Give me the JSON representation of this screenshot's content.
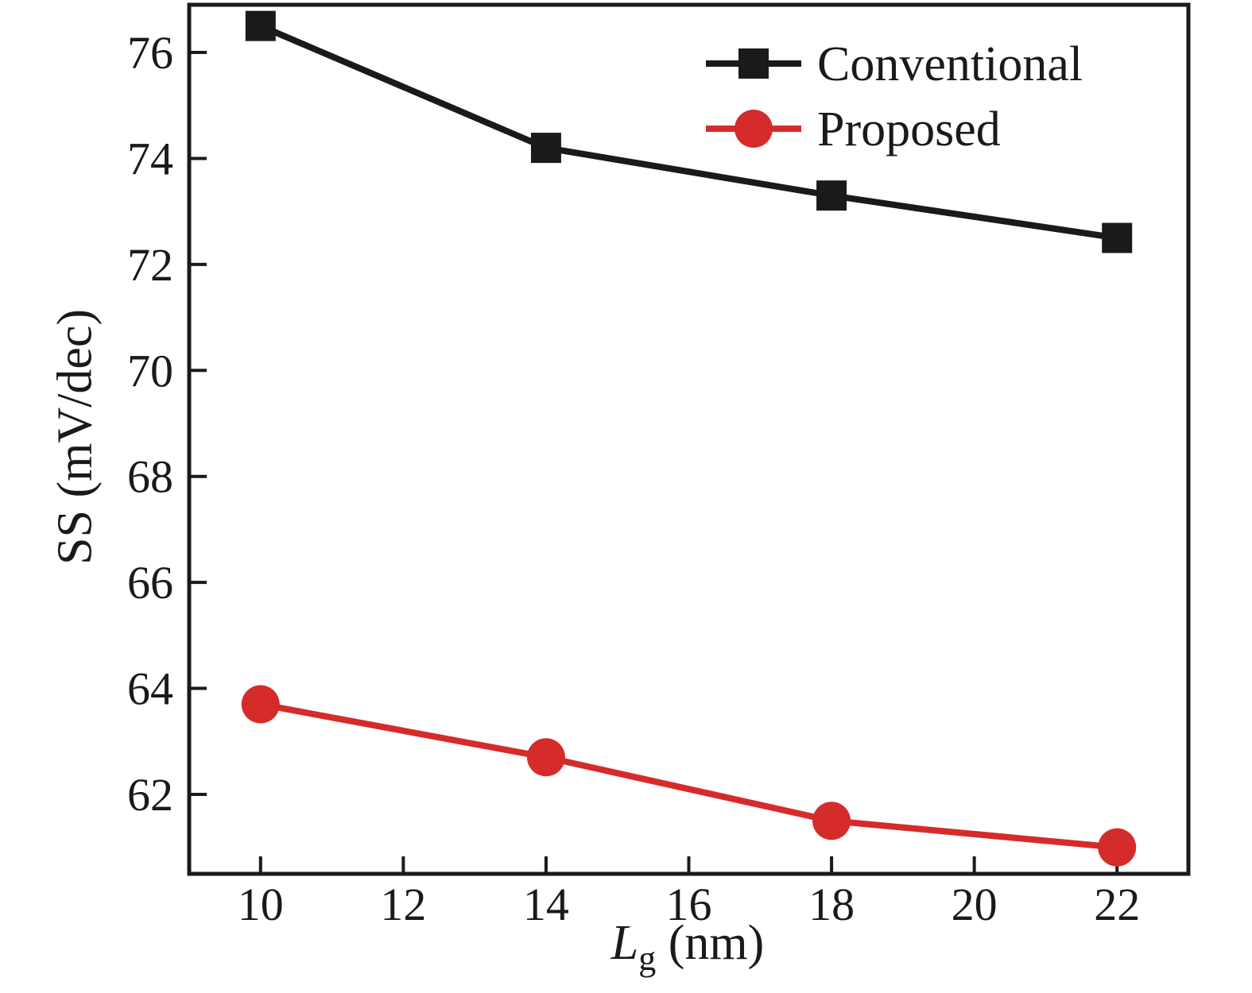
{
  "figure": {
    "background": "#ffffff",
    "frame_color": "#1a1a1a"
  },
  "chart_data": {
    "type": "line",
    "title": "",
    "x": [
      10,
      14,
      18,
      22
    ],
    "series": [
      {
        "name": "Conventional",
        "marker": "square",
        "color": "#1a1a1a",
        "values": [
          76.5,
          74.2,
          73.3,
          72.5
        ]
      },
      {
        "name": "Proposed",
        "marker": "circle",
        "color": "#d62b2b",
        "values": [
          63.7,
          62.7,
          61.5,
          61.0
        ]
      }
    ],
    "xlabel": "Lg (nm)",
    "xlabel_parts": {
      "italic": "L",
      "sub": "g",
      "rest": " (nm)"
    },
    "ylabel": "SS (mV/dec)",
    "xticks": [
      10,
      12,
      14,
      16,
      18,
      20,
      22
    ],
    "yticks": [
      62,
      64,
      66,
      68,
      70,
      72,
      74,
      76
    ],
    "xlim": [
      9,
      23
    ],
    "ylim": [
      60.5,
      76.9
    ],
    "grid": false,
    "legend_position": "top-right-inside"
  }
}
